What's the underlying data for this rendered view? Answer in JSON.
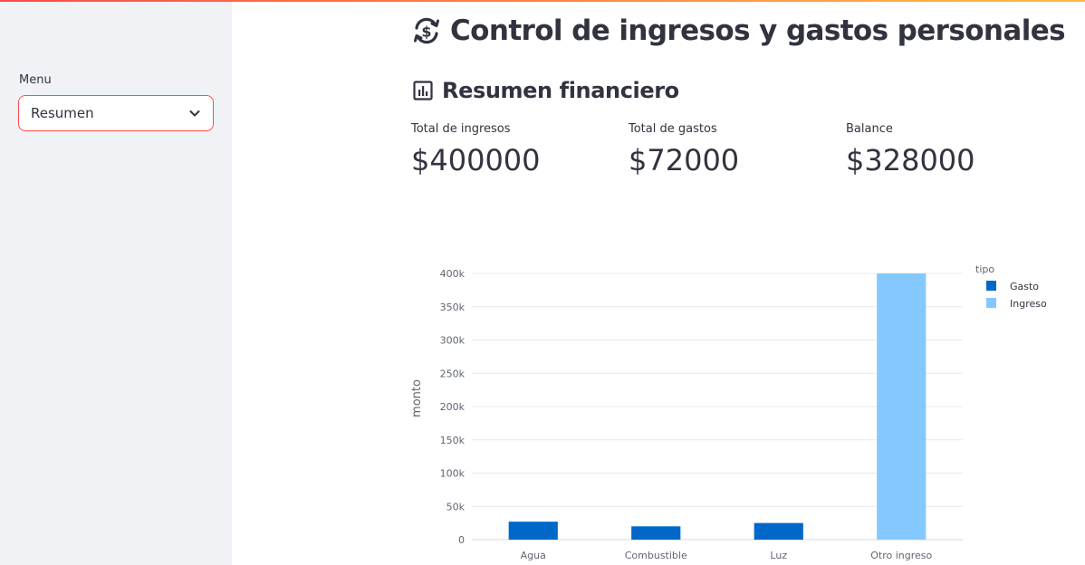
{
  "sidebar": {
    "menu_label": "Menu",
    "selected": "Resumen"
  },
  "header": {
    "title": "Control de ingresos y gastos personales",
    "title_icon": "currency-exchange-icon"
  },
  "summary": {
    "title": "Resumen financiero",
    "title_icon": "bar-chart-icon",
    "metrics": [
      {
        "label": "Total de ingresos",
        "value": "$400000"
      },
      {
        "label": "Total de gastos",
        "value": "$72000"
      },
      {
        "label": "Balance",
        "value": "$328000"
      }
    ]
  },
  "colors": {
    "accent": "#ff4b4b",
    "gasto": "#0068c9",
    "ingreso": "#83c9ff"
  },
  "chart_data": {
    "type": "bar",
    "categories": [
      "Agua",
      "Combustible",
      "Luz",
      "Otro ingreso"
    ],
    "series": [
      {
        "name": "Gasto",
        "values": [
          27000,
          20000,
          25000,
          0
        ]
      },
      {
        "name": "Ingreso",
        "values": [
          0,
          0,
          0,
          400000
        ]
      }
    ],
    "xlabel": "",
    "ylabel": "monto",
    "ylim": [
      0,
      400000
    ],
    "yticks": [
      0,
      50000,
      100000,
      150000,
      200000,
      250000,
      300000,
      350000,
      400000
    ],
    "ytick_labels": [
      "0",
      "50k",
      "100k",
      "150k",
      "200k",
      "250k",
      "300k",
      "350k",
      "400k"
    ],
    "legend_title": "tipo",
    "legend_position": "top-right",
    "grid": true
  }
}
